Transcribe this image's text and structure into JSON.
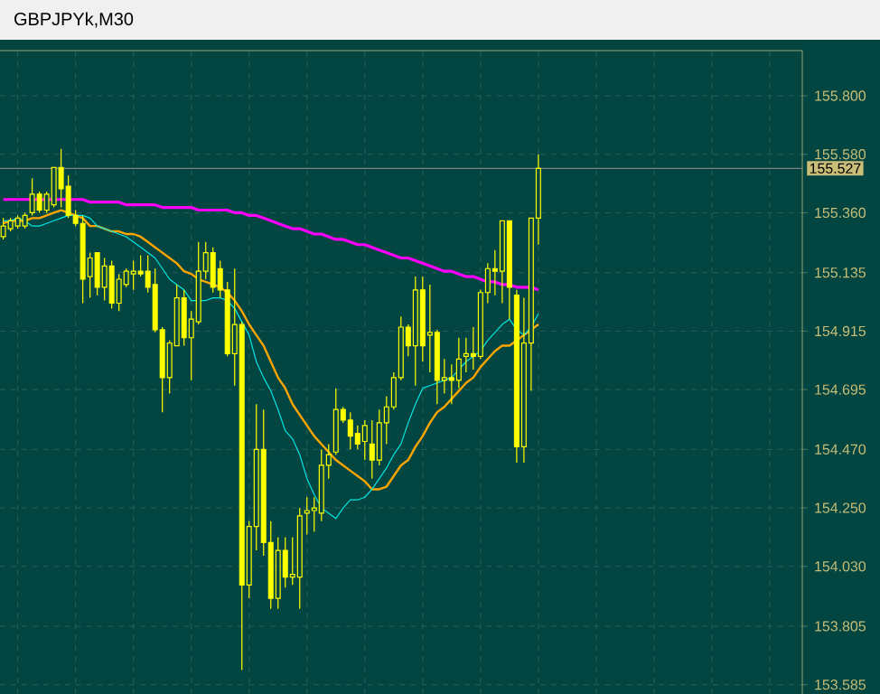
{
  "chart_data": {
    "type": "candlestick",
    "title": "GBPJPYk,M30",
    "categories": [
      null,
      null,
      null,
      null,
      null,
      null,
      null,
      null,
      null,
      null,
      null,
      null,
      null,
      null,
      null,
      null,
      null,
      null,
      null,
      null,
      null,
      null,
      null,
      null,
      null,
      null,
      null,
      null,
      null,
      null,
      null,
      null,
      null,
      null,
      null,
      null,
      null,
      null,
      null,
      null,
      null,
      null,
      null,
      null,
      null,
      null,
      null,
      null,
      null,
      null,
      null,
      null,
      null,
      null,
      null,
      null,
      null,
      null,
      null,
      null,
      null,
      null,
      null,
      null,
      null,
      null,
      null,
      null,
      null,
      null,
      null,
      null,
      null,
      null,
      null
    ],
    "color": "#ffff00",
    "ohlc": [
      [
        155.27,
        155.34,
        155.26,
        155.31
      ],
      [
        155.3,
        155.34,
        155.29,
        155.33
      ],
      [
        155.31,
        155.35,
        155.3,
        155.34
      ],
      [
        155.31,
        155.36,
        155.3,
        155.35
      ],
      [
        155.36,
        155.49,
        155.35,
        155.43
      ],
      [
        155.43,
        155.44,
        155.36,
        155.37
      ],
      [
        155.37,
        155.44,
        155.36,
        155.43
      ],
      [
        155.39,
        155.53,
        155.38,
        155.53
      ],
      [
        155.53,
        155.6,
        155.38,
        155.45
      ],
      [
        155.46,
        155.5,
        155.34,
        155.35
      ],
      [
        155.35,
        155.37,
        155.31,
        155.32
      ],
      [
        155.32,
        155.35,
        155.02,
        155.11
      ],
      [
        155.12,
        155.21,
        155.04,
        155.19
      ],
      [
        155.21,
        155.21,
        155.05,
        155.08
      ],
      [
        155.08,
        155.19,
        155.03,
        155.16
      ],
      [
        155.16,
        155.18,
        155.0,
        155.02
      ],
      [
        155.02,
        155.13,
        154.99,
        155.11
      ],
      [
        155.09,
        155.15,
        155.08,
        155.14
      ],
      [
        155.13,
        155.18,
        155.07,
        155.14
      ],
      [
        155.14,
        155.2,
        155.12,
        155.13
      ],
      [
        155.14,
        155.2,
        155.06,
        155.08
      ],
      [
        155.09,
        155.15,
        154.91,
        154.92
      ],
      [
        154.92,
        154.93,
        154.61,
        154.74
      ],
      [
        154.74,
        154.88,
        154.68,
        154.87
      ],
      [
        154.86,
        155.09,
        154.86,
        155.04
      ],
      [
        155.04,
        155.07,
        154.86,
        154.89
      ],
      [
        154.89,
        154.99,
        154.73,
        154.96
      ],
      [
        154.95,
        155.25,
        154.94,
        155.14
      ],
      [
        155.14,
        155.25,
        155.11,
        155.21
      ],
      [
        155.21,
        155.23,
        155.06,
        155.08
      ],
      [
        155.15,
        155.18,
        155.04,
        155.07
      ],
      [
        155.07,
        155.1,
        154.82,
        154.83
      ],
      [
        154.83,
        155.15,
        154.71,
        154.94
      ],
      [
        154.94,
        154.95,
        153.64,
        153.96
      ],
      [
        153.96,
        154.2,
        153.91,
        154.18
      ],
      [
        154.18,
        154.64,
        154.09,
        154.47
      ],
      [
        154.47,
        154.62,
        154.07,
        154.12
      ],
      [
        154.12,
        154.2,
        153.87,
        153.91
      ],
      [
        153.91,
        154.14,
        153.87,
        154.09
      ],
      [
        154.09,
        154.14,
        153.95,
        153.99
      ],
      [
        153.99,
        154.14,
        153.96,
        154.0
      ],
      [
        153.99,
        154.25,
        153.87,
        154.22
      ],
      [
        154.23,
        154.29,
        154.15,
        154.24
      ],
      [
        154.24,
        154.29,
        154.16,
        154.25
      ],
      [
        154.23,
        154.47,
        154.2,
        154.41
      ],
      [
        154.41,
        154.49,
        154.36,
        154.45
      ],
      [
        154.46,
        154.7,
        154.45,
        154.62
      ],
      [
        154.62,
        154.63,
        154.57,
        154.58
      ],
      [
        154.58,
        154.61,
        154.47,
        154.52
      ],
      [
        154.53,
        154.56,
        154.47,
        154.49
      ],
      [
        154.5,
        154.58,
        154.43,
        154.56
      ],
      [
        154.49,
        154.58,
        154.36,
        154.43
      ],
      [
        154.43,
        154.62,
        154.41,
        154.57
      ],
      [
        154.57,
        154.67,
        154.49,
        154.63
      ],
      [
        154.63,
        154.76,
        154.62,
        154.74
      ],
      [
        154.74,
        154.97,
        154.73,
        154.93
      ],
      [
        154.93,
        154.94,
        154.82,
        154.86
      ],
      [
        154.86,
        155.12,
        154.71,
        155.07
      ],
      [
        155.07,
        155.12,
        154.8,
        154.86
      ],
      [
        154.9,
        155.09,
        154.76,
        154.91
      ],
      [
        154.91,
        154.92,
        154.64,
        154.73
      ],
      [
        154.73,
        154.81,
        154.68,
        154.74
      ],
      [
        154.74,
        154.79,
        154.64,
        154.73
      ],
      [
        154.73,
        154.89,
        154.7,
        154.81
      ],
      [
        154.82,
        154.89,
        154.76,
        154.83
      ],
      [
        154.83,
        154.93,
        154.77,
        154.82
      ],
      [
        154.82,
        155.07,
        154.81,
        155.06
      ],
      [
        155.06,
        155.17,
        155.02,
        155.15
      ],
      [
        155.15,
        155.22,
        155.05,
        155.14
      ],
      [
        155.14,
        155.33,
        155.02,
        155.33
      ],
      [
        155.33,
        155.33,
        154.96,
        155.08
      ],
      [
        155.05,
        155.07,
        154.42,
        154.48
      ],
      [
        154.48,
        155.04,
        154.42,
        154.87
      ],
      [
        154.87,
        155.34,
        154.69,
        155.34
      ],
      [
        155.34,
        155.58,
        155.24,
        155.527
      ]
    ],
    "series": [
      {
        "type": "line",
        "color": "#ff00ff",
        "values": [
          155.41,
          155.41,
          155.41,
          155.41,
          155.41,
          155.41,
          155.41,
          155.41,
          155.41,
          155.41,
          155.41,
          155.41,
          155.4,
          155.4,
          155.4,
          155.4,
          155.4,
          155.39,
          155.39,
          155.39,
          155.39,
          155.39,
          155.38,
          155.38,
          155.38,
          155.38,
          155.38,
          155.37,
          155.37,
          155.37,
          155.37,
          155.37,
          155.36,
          155.36,
          155.35,
          155.35,
          155.34,
          155.33,
          155.32,
          155.31,
          155.3,
          155.3,
          155.29,
          155.28,
          155.28,
          155.27,
          155.26,
          155.26,
          155.25,
          155.24,
          155.24,
          155.23,
          155.22,
          155.21,
          155.2,
          155.19,
          155.19,
          155.18,
          155.17,
          155.16,
          155.15,
          155.14,
          155.14,
          155.13,
          155.12,
          155.12,
          155.11,
          155.1,
          155.1,
          155.09,
          155.09,
          155.08,
          155.08,
          155.08,
          155.07
        ]
      },
      {
        "type": "line",
        "color": "#ffa500",
        "values": [
          155.32,
          155.33,
          155.33,
          155.33,
          155.34,
          155.34,
          155.35,
          155.36,
          155.37,
          155.36,
          155.35,
          155.34,
          155.31,
          155.31,
          155.3,
          155.29,
          155.29,
          155.28,
          155.28,
          155.27,
          155.25,
          155.23,
          155.21,
          155.19,
          155.17,
          155.14,
          155.13,
          155.11,
          155.1,
          155.09,
          155.08,
          155.06,
          155.03,
          154.99,
          154.94,
          154.9,
          154.86,
          154.8,
          154.74,
          154.7,
          154.64,
          154.6,
          154.56,
          154.52,
          154.49,
          154.46,
          154.43,
          154.41,
          154.39,
          154.37,
          154.35,
          154.32,
          154.32,
          154.33,
          154.37,
          154.41,
          154.43,
          154.48,
          154.52,
          154.57,
          154.61,
          154.63,
          154.66,
          154.69,
          154.72,
          154.74,
          154.78,
          154.81,
          154.84,
          154.86,
          154.86,
          154.88,
          154.9,
          154.92,
          154.94
        ]
      },
      {
        "type": "line",
        "color": "#00e5e5",
        "values": [
          155.33,
          155.33,
          155.34,
          155.33,
          155.31,
          155.31,
          155.32,
          155.33,
          155.34,
          155.35,
          155.35,
          155.35,
          155.34,
          155.31,
          155.3,
          155.29,
          155.28,
          155.27,
          155.25,
          155.23,
          155.21,
          155.19,
          155.15,
          155.11,
          155.09,
          155.07,
          155.03,
          155.03,
          155.03,
          155.04,
          155.04,
          155.03,
          155.0,
          154.95,
          154.9,
          154.8,
          154.74,
          154.69,
          154.62,
          154.54,
          154.51,
          154.45,
          154.36,
          154.3,
          154.25,
          154.23,
          154.21,
          154.25,
          154.28,
          154.28,
          154.29,
          154.32,
          154.36,
          154.4,
          154.45,
          154.49,
          154.57,
          154.64,
          154.7,
          154.71,
          154.72,
          154.73,
          154.74,
          154.77,
          154.8,
          154.82,
          154.84,
          154.88,
          154.91,
          154.94,
          154.96,
          154.92,
          154.9,
          154.93,
          154.98
        ]
      }
    ],
    "ylim": [
      153.55,
      155.97
    ],
    "yticks": [
      {
        "value": 153.585,
        "label": "153.585"
      },
      {
        "value": 153.805,
        "label": "153.805"
      },
      {
        "value": 154.03,
        "label": "154.030"
      },
      {
        "value": 154.25,
        "label": "154.250"
      },
      {
        "value": 154.47,
        "label": "154.470"
      },
      {
        "value": 154.695,
        "label": "154.695"
      },
      {
        "value": 154.915,
        "label": "154.915"
      },
      {
        "value": 155.135,
        "label": "155.135"
      },
      {
        "value": 155.36,
        "label": "155.360"
      },
      {
        "value": 155.58,
        "label": "155.580"
      },
      {
        "value": 155.8,
        "label": "155.800"
      }
    ],
    "ref_lines": [
      {
        "axis": "y",
        "value": 155.527,
        "label": "155.527",
        "color": "#808080"
      }
    ],
    "grid": true,
    "tick_labels": "y"
  }
}
